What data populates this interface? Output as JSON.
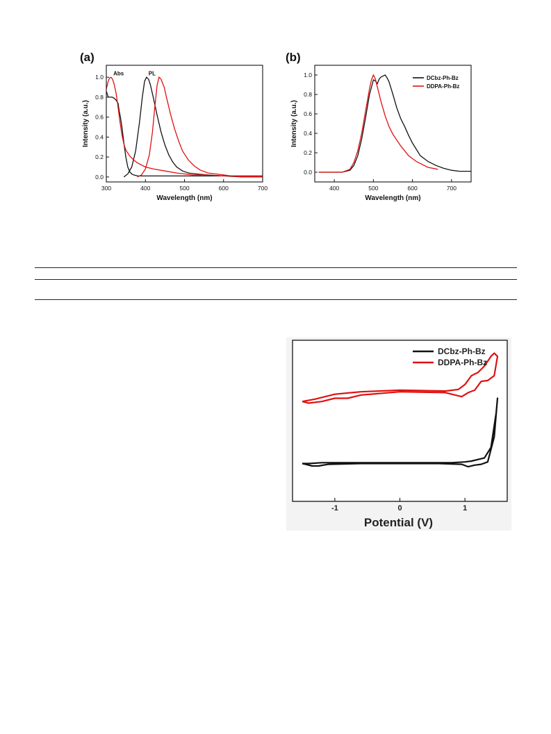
{
  "figures": {
    "a": {
      "label": "(a)"
    },
    "b": {
      "label": "(b)"
    }
  },
  "colors": {
    "black_series": "#111111",
    "red_series": "#e01010"
  },
  "chart_data": [
    {
      "id": "a",
      "type": "line",
      "xlabel": "Wavelength (nm)",
      "ylabel": "Intensity (a.u.)",
      "xlim": [
        300,
        700
      ],
      "ylim": [
        -0.05,
        1.12
      ],
      "xticks": [
        300,
        400,
        500,
        600,
        700
      ],
      "yticks": [
        0.0,
        0.2,
        0.4,
        0.6,
        0.8,
        1.0
      ],
      "xtick_labels": [
        "300",
        "400",
        "500",
        "600",
        "700"
      ],
      "ytick_labels": [
        "0.0",
        "0.2",
        "0.4",
        "0.6",
        "0.8",
        "1.0"
      ],
      "annotations": [
        {
          "text": "Abs",
          "x": 318,
          "y": 1.02
        },
        {
          "text": "PL",
          "x": 408,
          "y": 1.02
        }
      ],
      "series": [
        {
          "color": "black",
          "kind": "Abs",
          "x": [
            300,
            305,
            310,
            315,
            320,
            325,
            330,
            333,
            336,
            340,
            345,
            350,
            355,
            360,
            365,
            370,
            380,
            400,
            450,
            500,
            550,
            600,
            650,
            700
          ],
          "y": [
            0.86,
            0.8,
            0.8,
            0.8,
            0.79,
            0.77,
            0.74,
            0.66,
            0.6,
            0.5,
            0.34,
            0.2,
            0.1,
            0.05,
            0.03,
            0.02,
            0.01,
            0.01,
            0.01,
            0.01,
            0.01,
            0.01,
            0.01,
            0.01
          ]
        },
        {
          "color": "black",
          "kind": "PL",
          "x": [
            345,
            355,
            365,
            375,
            385,
            392,
            398,
            403,
            408,
            413,
            420,
            430,
            440,
            450,
            460,
            470,
            480,
            495,
            510,
            530,
            560,
            600,
            650,
            700
          ],
          "y": [
            0.0,
            0.03,
            0.1,
            0.26,
            0.55,
            0.8,
            0.96,
            1.0,
            0.98,
            0.92,
            0.8,
            0.62,
            0.45,
            0.32,
            0.22,
            0.15,
            0.1,
            0.06,
            0.04,
            0.03,
            0.02,
            0.01,
            0.0,
            0.0
          ]
        },
        {
          "color": "red",
          "kind": "Abs",
          "x": [
            300,
            304,
            308,
            312,
            316,
            320,
            325,
            330,
            335,
            340,
            345,
            350,
            360,
            370,
            380,
            400,
            420,
            450,
            480,
            500,
            520,
            550,
            600,
            650,
            700
          ],
          "y": [
            0.88,
            0.95,
            0.99,
            1.0,
            0.98,
            0.93,
            0.84,
            0.7,
            0.55,
            0.42,
            0.33,
            0.27,
            0.21,
            0.17,
            0.14,
            0.1,
            0.08,
            0.06,
            0.04,
            0.03,
            0.02,
            0.02,
            0.01,
            0.01,
            0.01
          ]
        },
        {
          "color": "red",
          "kind": "PL",
          "x": [
            380,
            390,
            400,
            410,
            418,
            424,
            430,
            435,
            440,
            448,
            455,
            465,
            475,
            485,
            495,
            510,
            525,
            540,
            560,
            580,
            600,
            620,
            650,
            700
          ],
          "y": [
            0.0,
            0.02,
            0.08,
            0.22,
            0.45,
            0.7,
            0.92,
            1.0,
            0.98,
            0.9,
            0.78,
            0.62,
            0.48,
            0.36,
            0.26,
            0.17,
            0.11,
            0.07,
            0.04,
            0.03,
            0.02,
            0.01,
            0.0,
            0.0
          ]
        }
      ]
    },
    {
      "id": "b",
      "type": "line",
      "xlabel": "Wavelength (nm)",
      "ylabel": "Intensity (a.u.)",
      "xlim": [
        350,
        750
      ],
      "ylim": [
        -0.1,
        1.1
      ],
      "xticks": [
        400,
        500,
        600,
        700
      ],
      "yticks": [
        0.0,
        0.2,
        0.4,
        0.6,
        0.8,
        1.0
      ],
      "xtick_labels": [
        "400",
        "500",
        "600",
        "700"
      ],
      "ytick_labels": [
        "0.0",
        "0.2",
        "0.4",
        "0.6",
        "0.8",
        "1.0"
      ],
      "legend_position": "top-right",
      "series": [
        {
          "name": "DCbz-Ph-Bz",
          "color": "black",
          "x": [
            360,
            420,
            440,
            450,
            460,
            470,
            480,
            490,
            500,
            505,
            510,
            515,
            520,
            525,
            530,
            535,
            540,
            550,
            560,
            570,
            580,
            590,
            600,
            620,
            640,
            660,
            680,
            700,
            720,
            750
          ],
          "y": [
            0.0,
            0.0,
            0.02,
            0.07,
            0.17,
            0.34,
            0.56,
            0.8,
            0.95,
            0.94,
            0.91,
            0.96,
            0.98,
            0.99,
            1.0,
            0.97,
            0.93,
            0.8,
            0.66,
            0.55,
            0.47,
            0.38,
            0.3,
            0.17,
            0.11,
            0.07,
            0.04,
            0.02,
            0.01,
            0.01
          ]
        },
        {
          "name": "DDPA-Ph-Bz",
          "color": "red",
          "x": [
            360,
            420,
            440,
            450,
            460,
            470,
            480,
            490,
            495,
            500,
            505,
            510,
            520,
            530,
            540,
            550,
            560,
            570,
            580,
            590,
            600,
            610,
            620,
            640,
            665
          ],
          "y": [
            0.0,
            0.0,
            0.03,
            0.1,
            0.22,
            0.4,
            0.63,
            0.86,
            0.95,
            1.0,
            0.96,
            0.88,
            0.72,
            0.58,
            0.47,
            0.39,
            0.33,
            0.27,
            0.22,
            0.17,
            0.14,
            0.11,
            0.09,
            0.05,
            0.03
          ]
        }
      ]
    },
    {
      "id": "cv",
      "type": "line",
      "xlabel": "Potential (V)",
      "xlim": [
        -1.65,
        1.65
      ],
      "ylim": [
        -1.0,
        1.0
      ],
      "xticks": [
        -1,
        0,
        1
      ],
      "xtick_labels": [
        "-1",
        "0",
        "1"
      ],
      "legend_position": "top-right",
      "series": [
        {
          "name": "DCbz-Ph-Bz",
          "color": "black",
          "x": [
            -1.5,
            -1.4,
            -1.2,
            -0.8,
            0.0,
            0.8,
            1.0,
            1.1,
            1.2,
            1.3,
            1.4,
            1.48,
            1.5,
            1.45,
            1.35,
            1.25,
            1.15,
            1.05,
            0.95,
            0.6,
            0.0,
            -0.6,
            -1.1,
            -1.25,
            -1.35,
            -1.45,
            -1.5
          ],
          "y": [
            -0.53,
            -0.53,
            -0.52,
            -0.52,
            -0.52,
            -0.52,
            -0.51,
            -0.5,
            -0.48,
            -0.46,
            -0.33,
            0.1,
            0.28,
            -0.2,
            -0.51,
            -0.54,
            -0.55,
            -0.57,
            -0.54,
            -0.53,
            -0.53,
            -0.53,
            -0.54,
            -0.56,
            -0.56,
            -0.54,
            -0.53
          ]
        },
        {
          "name": "DDPA-Ph-Bz",
          "color": "red",
          "x": [
            -1.5,
            -1.3,
            -1.0,
            -0.6,
            0.0,
            0.7,
            0.9,
            1.0,
            1.1,
            1.2,
            1.3,
            1.4,
            1.45,
            1.5,
            1.45,
            1.35,
            1.25,
            1.15,
            1.05,
            0.95,
            0.7,
            0.0,
            -0.6,
            -0.8,
            -1.0,
            -1.2,
            -1.4,
            -1.5
          ],
          "y": [
            0.24,
            0.27,
            0.33,
            0.36,
            0.38,
            0.37,
            0.39,
            0.45,
            0.56,
            0.6,
            0.68,
            0.8,
            0.84,
            0.8,
            0.56,
            0.5,
            0.49,
            0.38,
            0.35,
            0.3,
            0.35,
            0.36,
            0.32,
            0.28,
            0.28,
            0.24,
            0.22,
            0.24
          ]
        }
      ]
    }
  ]
}
